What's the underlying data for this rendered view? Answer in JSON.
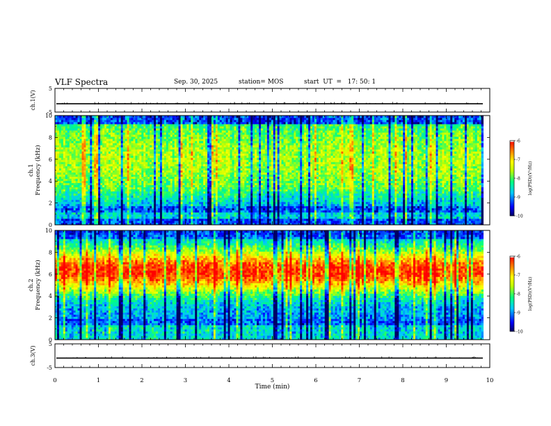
{
  "header": {
    "title": "VLF Spectra",
    "date": "Sep. 30, 2025",
    "station": "station= MOS",
    "start": "start  UT  =   17: 50: 1"
  },
  "chart_data": [
    {
      "type": "line",
      "panel": "ch1-waveform",
      "ylabel": "ch.1(V)",
      "ylim": [
        -5,
        5
      ],
      "yticks": [
        "5",
        "-5"
      ],
      "xlim": [
        0,
        10
      ],
      "baseline": -1.5
    },
    {
      "type": "heatmap",
      "panel": "ch1-spectrogram",
      "ylabel_line1": "ch.1",
      "ylabel_line2": "Frequency (kHz)",
      "ylim": [
        0,
        10
      ],
      "yticks": [
        "0",
        "2",
        "4",
        "6",
        "8",
        "10"
      ],
      "xlim": [
        0,
        10
      ],
      "data_end_min": 9.85,
      "colorbar": {
        "label": "log(PSD)(V²/Hz)",
        "range": [
          -10,
          -6
        ],
        "ticks": [
          "-6",
          "-7",
          "-8",
          "-9",
          "-10"
        ]
      },
      "dominant_band_khz": [
        3,
        9
      ],
      "background_band_khz": [
        0,
        3
      ]
    },
    {
      "type": "heatmap",
      "panel": "ch2-spectrogram",
      "ylabel_line1": "ch.2",
      "ylabel_line2": "Frequency (kHz)",
      "ylim": [
        0,
        10
      ],
      "yticks": [
        "0",
        "2",
        "4",
        "6",
        "8",
        "10"
      ],
      "xlim": [
        0,
        10
      ],
      "data_end_min": 9.85,
      "colorbar": {
        "label": "log(PSD)(V²/Hz)",
        "range": [
          -10,
          -6
        ],
        "ticks": [
          "-6",
          "-7",
          "-8",
          "-9",
          "-10"
        ]
      },
      "peak_band_khz": [
        5,
        7.5
      ]
    },
    {
      "type": "line",
      "panel": "ch3-waveform",
      "ylabel": "ch.3(V)",
      "ylim": [
        -5,
        5
      ],
      "yticks": [
        "5",
        "-5"
      ],
      "xlim": [
        0,
        10
      ],
      "baseline": -1.0
    }
  ],
  "xaxis": {
    "label": "Time (min)",
    "ticks": [
      "0",
      "1",
      "2",
      "3",
      "4",
      "5",
      "6",
      "7",
      "8",
      "9",
      "10"
    ]
  },
  "colors": {
    "jet": [
      "#000080",
      "#0000ff",
      "#00c0ff",
      "#00ff80",
      "#c0ff00",
      "#ffff00",
      "#ff8000",
      "#ff0000",
      "#ffffff"
    ]
  }
}
